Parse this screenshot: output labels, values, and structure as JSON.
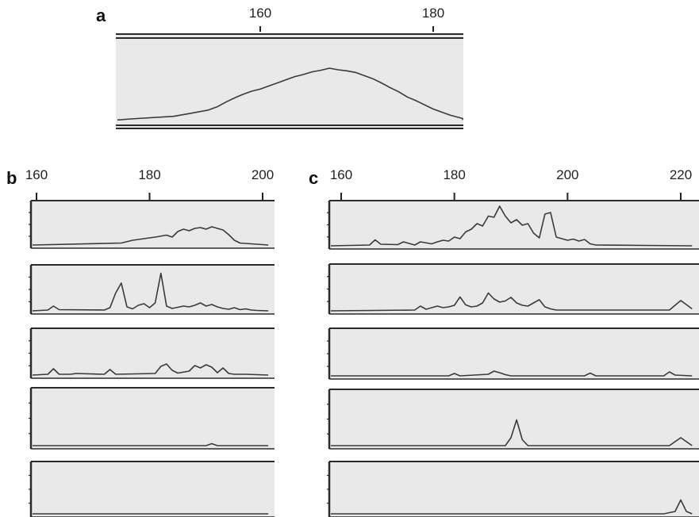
{
  "chart_data": [
    {
      "panel": "a",
      "type": "line",
      "x_ticks": [
        "160",
        "180"
      ],
      "xlim": [
        140,
        188
      ],
      "traces": [
        {
          "x": [
            140,
            145,
            150,
            152,
            154,
            155,
            156,
            157,
            158,
            159,
            160,
            161,
            162,
            163,
            164,
            165,
            166,
            167,
            168,
            169,
            170,
            171,
            172,
            173,
            174,
            175,
            176,
            177,
            178,
            180,
            182,
            184,
            188
          ],
          "y": [
            0.01,
            0.03,
            0.08,
            0.14,
            0.2,
            0.26,
            0.35,
            0.43,
            0.5,
            0.56,
            0.6,
            0.66,
            0.72,
            0.78,
            0.84,
            0.88,
            0.93,
            0.96,
            1.0,
            0.97,
            0.95,
            0.92,
            0.86,
            0.8,
            0.72,
            0.63,
            0.55,
            0.45,
            0.38,
            0.22,
            0.1,
            0.04,
            0.01
          ]
        }
      ]
    },
    {
      "panel": "b",
      "type": "line",
      "x_ticks": [
        "160",
        "180",
        "200"
      ],
      "xlim": [
        159,
        201
      ],
      "traces": [
        {
          "x": [
            159,
            175,
            177,
            179,
            181,
            183,
            184,
            185,
            186,
            187,
            188,
            189,
            190,
            191,
            192,
            193,
            194,
            195,
            196,
            201
          ],
          "y": [
            0.0,
            0.05,
            0.12,
            0.16,
            0.2,
            0.25,
            0.2,
            0.34,
            0.4,
            0.36,
            0.42,
            0.44,
            0.4,
            0.46,
            0.42,
            0.38,
            0.26,
            0.12,
            0.05,
            0.0
          ]
        },
        {
          "x": [
            159,
            162,
            163,
            164,
            172,
            173,
            174,
            175,
            176,
            177,
            178,
            179,
            180,
            181,
            182,
            183,
            184,
            185,
            186,
            187,
            188,
            189,
            190,
            191,
            192,
            193,
            194,
            195,
            196,
            197,
            198,
            199,
            201
          ],
          "y": [
            0.0,
            0.02,
            0.12,
            0.03,
            0.02,
            0.08,
            0.45,
            0.7,
            0.1,
            0.05,
            0.14,
            0.18,
            0.08,
            0.2,
            0.95,
            0.12,
            0.06,
            0.09,
            0.12,
            0.1,
            0.14,
            0.2,
            0.12,
            0.16,
            0.1,
            0.06,
            0.04,
            0.08,
            0.03,
            0.05,
            0.02,
            0.01,
            0.0
          ]
        },
        {
          "x": [
            159,
            162,
            163,
            164,
            166,
            167,
            172,
            173,
            174,
            181,
            182,
            183,
            184,
            185,
            187,
            188,
            189,
            190,
            191,
            192,
            193,
            194,
            195,
            197,
            201
          ],
          "y": [
            0.0,
            0.02,
            0.16,
            0.02,
            0.02,
            0.04,
            0.02,
            0.14,
            0.02,
            0.04,
            0.22,
            0.28,
            0.12,
            0.05,
            0.1,
            0.24,
            0.18,
            0.26,
            0.2,
            0.06,
            0.18,
            0.04,
            0.02,
            0.02,
            0.0
          ]
        },
        {
          "x": [
            159,
            190,
            191,
            192,
            201
          ],
          "y": [
            0.0,
            0.0,
            0.05,
            0.0,
            0.0
          ]
        },
        {
          "x": [
            159,
            201
          ],
          "y": [
            0.0,
            0.0
          ]
        }
      ]
    },
    {
      "panel": "c",
      "type": "line",
      "x_ticks": [
        "160",
        "180",
        "200",
        "220"
      ],
      "xlim": [
        158,
        222
      ],
      "traces": [
        {
          "x": [
            158,
            165,
            166,
            167,
            170,
            171,
            173,
            174,
            176,
            177,
            178,
            179,
            180,
            181,
            182,
            183,
            184,
            185,
            186,
            187,
            188,
            189,
            190,
            191,
            192,
            193,
            194,
            195,
            196,
            197,
            198,
            199,
            200,
            201,
            202,
            203,
            204,
            205,
            222
          ],
          "y": [
            0.0,
            0.02,
            0.15,
            0.04,
            0.03,
            0.1,
            0.02,
            0.1,
            0.05,
            0.1,
            0.14,
            0.12,
            0.22,
            0.18,
            0.35,
            0.42,
            0.56,
            0.5,
            0.75,
            0.72,
            1.0,
            0.75,
            0.58,
            0.66,
            0.52,
            0.56,
            0.32,
            0.2,
            0.8,
            0.84,
            0.22,
            0.18,
            0.14,
            0.17,
            0.12,
            0.16,
            0.05,
            0.02,
            0.0
          ]
        },
        {
          "x": [
            158,
            173,
            174,
            175,
            176,
            177,
            178,
            179,
            180,
            181,
            182,
            183,
            184,
            185,
            186,
            187,
            188,
            189,
            190,
            191,
            192,
            193,
            194,
            195,
            196,
            197,
            198,
            218,
            220,
            222
          ],
          "y": [
            0.0,
            0.02,
            0.12,
            0.04,
            0.08,
            0.12,
            0.08,
            0.1,
            0.14,
            0.35,
            0.15,
            0.1,
            0.12,
            0.2,
            0.45,
            0.3,
            0.22,
            0.25,
            0.34,
            0.2,
            0.14,
            0.12,
            0.2,
            0.28,
            0.1,
            0.05,
            0.02,
            0.02,
            0.26,
            0.05
          ]
        },
        {
          "x": [
            158,
            179,
            180,
            181,
            186,
            187,
            188,
            189,
            190,
            203,
            204,
            205,
            217,
            218,
            219,
            222
          ],
          "y": [
            0.0,
            0.0,
            0.06,
            0.0,
            0.04,
            0.12,
            0.08,
            0.03,
            0.0,
            0.0,
            0.07,
            0.0,
            0.0,
            0.1,
            0.02,
            0.0
          ]
        },
        {
          "x": [
            158,
            189,
            190,
            191,
            192,
            193,
            218,
            220,
            222
          ],
          "y": [
            0.0,
            0.0,
            0.2,
            0.65,
            0.15,
            0.0,
            0.0,
            0.2,
            0.0
          ]
        },
        {
          "x": [
            158,
            217,
            219,
            220,
            221,
            222
          ],
          "y": [
            0.0,
            0.0,
            0.06,
            0.35,
            0.06,
            0.0
          ]
        }
      ]
    }
  ]
}
